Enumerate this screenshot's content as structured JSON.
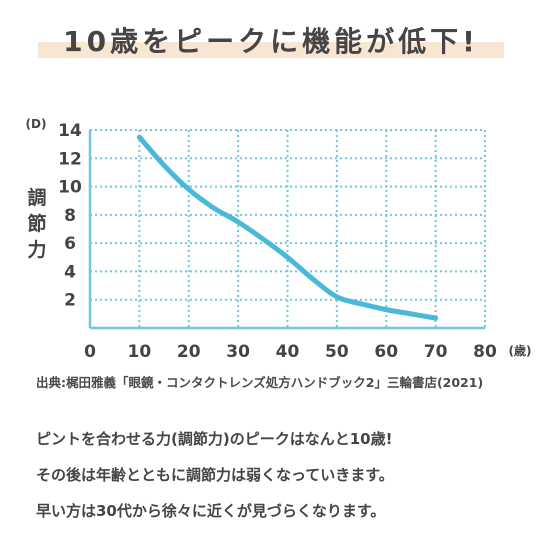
{
  "title": "10歳をピークに機能が低下!",
  "source": "出典:梶田雅義「眼鏡・コンタクトレンズ処方ハンドブック2」三輪書店(2021)",
  "body_lines": [
    "ピントを合わせる力(調節力)のピークはなんと10歳!",
    "その後は年齢とともに調節力は弱くなっていきます。",
    "早い方は30代から徐々に近くが見づらくなります。"
  ],
  "chart_data": {
    "type": "line",
    "ylabel": "調節力",
    "y_unit": "(D)",
    "x_unit": "(歳)",
    "xlim": [
      0,
      80
    ],
    "ylim": [
      0,
      14
    ],
    "x_ticks": [
      0,
      10,
      20,
      30,
      40,
      50,
      60,
      70,
      80
    ],
    "y_ticks": [
      2,
      4,
      6,
      8,
      10,
      12,
      14
    ],
    "grid": true,
    "line_color": "#4ab8d8",
    "grid_color": "#6fc8df",
    "series": [
      {
        "x": [
          10,
          15,
          20,
          25,
          30,
          35,
          40,
          45,
          50,
          55,
          60,
          65,
          70
        ],
        "values": [
          13.5,
          11.5,
          9.8,
          8.5,
          7.5,
          6.3,
          5.0,
          3.5,
          2.2,
          1.7,
          1.3,
          1.0,
          0.7
        ]
      }
    ]
  }
}
